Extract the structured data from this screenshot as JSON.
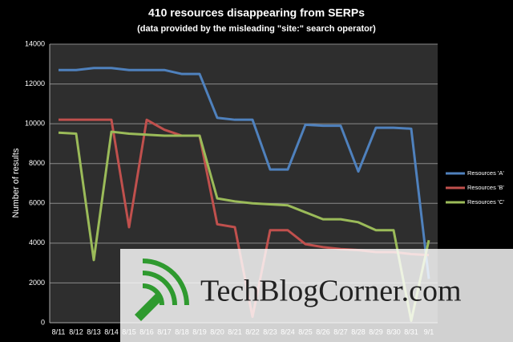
{
  "chart_data": {
    "type": "line",
    "title": "410 resources disappearing from SERPs",
    "subtitle": "(data provided by the misleading \"site:\" search operator)",
    "y_label": "Number of results",
    "categories": [
      "8/11",
      "8/12",
      "8/13",
      "8/14",
      "8/15",
      "8/16",
      "8/17",
      "8/18",
      "8/19",
      "8/20",
      "8/21",
      "8/22",
      "8/23",
      "8/24",
      "8/25",
      "8/26",
      "8/27",
      "8/28",
      "8/29",
      "8/30",
      "8/31",
      "9/1"
    ],
    "series": [
      {
        "name": "Resources 'A'",
        "color": "#4f81bd",
        "values": [
          12700,
          12700,
          12800,
          12800,
          12700,
          12700,
          12700,
          12500,
          12500,
          10300,
          10200,
          10200,
          7700,
          7700,
          9950,
          9900,
          9900,
          7600,
          9800,
          9800,
          9750,
          2200
        ]
      },
      {
        "name": "Resources 'B'",
        "color": "#c0504d",
        "values": [
          10200,
          10200,
          10200,
          10200,
          4800,
          10200,
          9700,
          9400,
          9400,
          4950,
          4800,
          300,
          4650,
          4650,
          3950,
          3800,
          3700,
          3650,
          3550,
          3550,
          3450,
          3400
        ]
      },
      {
        "name": "Resources 'C'",
        "color": "#9bbb59",
        "values": [
          9550,
          9500,
          3150,
          9600,
          9500,
          9450,
          9400,
          9400,
          9400,
          6250,
          6100,
          6000,
          5950,
          5900,
          5550,
          5200,
          5200,
          5050,
          4650,
          4650,
          100,
          4150
        ]
      }
    ],
    "ylim": [
      0,
      14000
    ],
    "yticks": [
      0,
      2000,
      4000,
      6000,
      8000,
      10000,
      12000,
      14000
    ],
    "grid": true,
    "legend": "right",
    "watermark": "TechBlogCorner.com"
  }
}
